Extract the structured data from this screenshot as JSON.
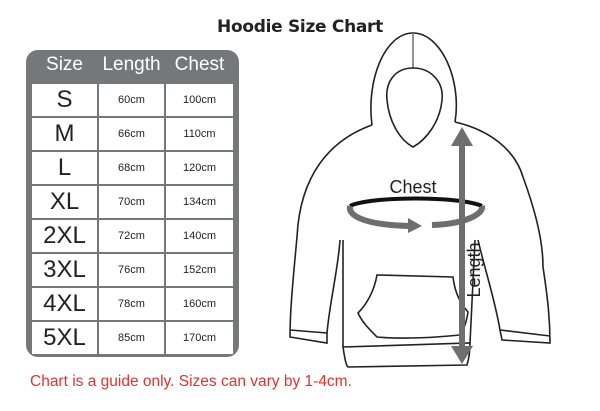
{
  "title": "Hoodie Size Chart",
  "table": {
    "headers": [
      "Size",
      "Length",
      "Chest"
    ],
    "rows": [
      [
        "S",
        "60cm",
        "100cm"
      ],
      [
        "M",
        "66cm",
        "110cm"
      ],
      [
        "L",
        "68cm",
        "120cm"
      ],
      [
        "XL",
        "70cm",
        "134cm"
      ],
      [
        "2XL",
        "72cm",
        "140cm"
      ],
      [
        "3XL",
        "76cm",
        "152cm"
      ],
      [
        "4XL",
        "78cm",
        "160cm"
      ],
      [
        "5XL",
        "85cm",
        "170cm"
      ]
    ]
  },
  "diagram": {
    "chest_label": "Chest",
    "length_label": "Length"
  },
  "note": "Chart is a guide only. Sizes can vary by 1-4cm.",
  "colors": {
    "table_frame": "#767779",
    "note": "#e0322f",
    "arrow": "#6e6e70"
  }
}
